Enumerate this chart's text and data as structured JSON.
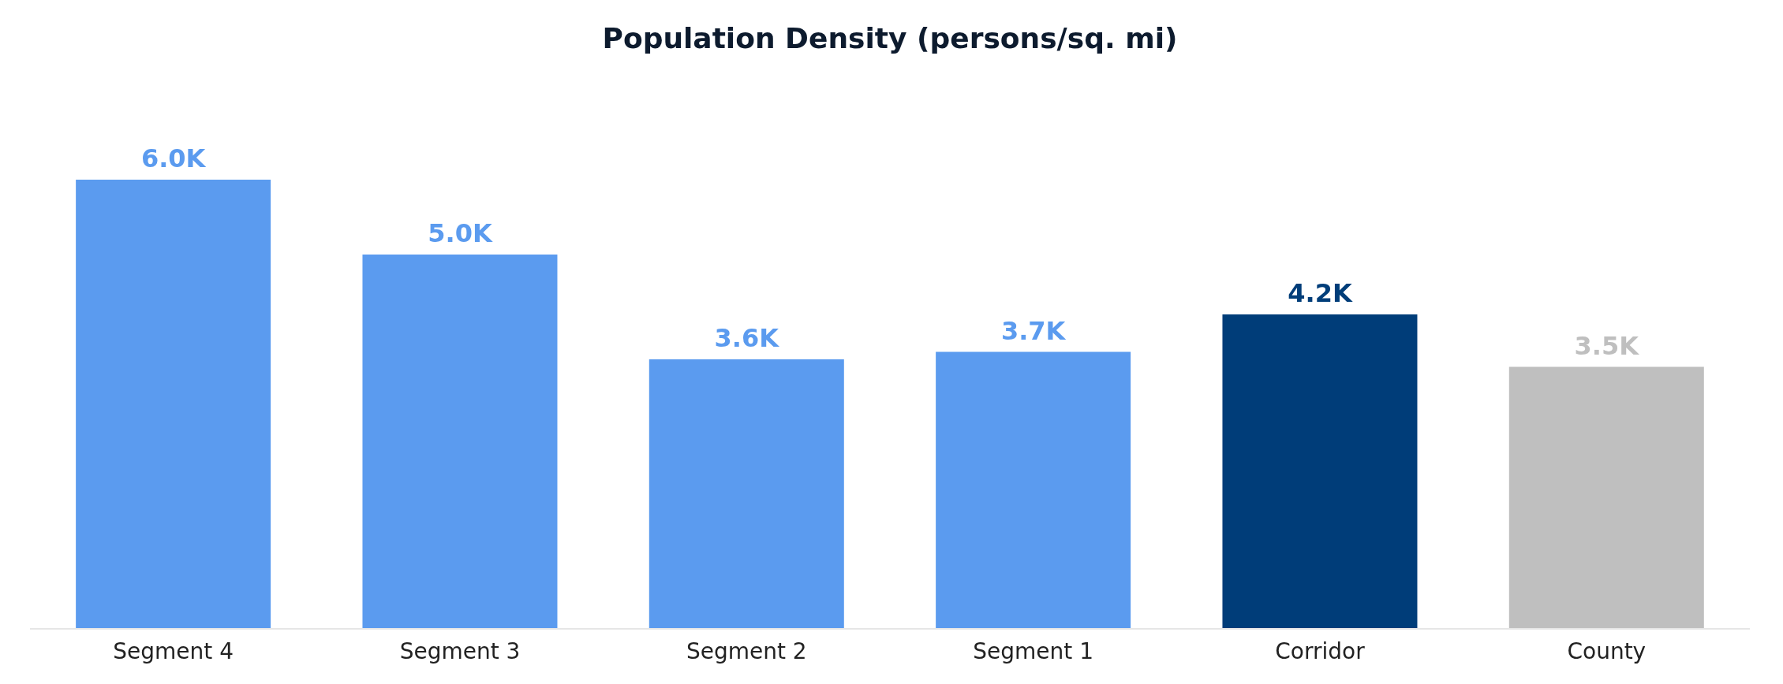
{
  "chart_data": {
    "type": "bar",
    "title": "Population Density (persons/sq. mi)",
    "categories": [
      "Segment 4",
      "Segment 3",
      "Segment 2",
      "Segment 1",
      "Corridor",
      "County"
    ],
    "values": [
      6000,
      5000,
      3600,
      3700,
      4200,
      3500
    ],
    "value_labels": [
      "6.0K",
      "5.0K",
      "3.6K",
      "3.7K",
      "4.2K",
      "3.5K"
    ],
    "colors": [
      "#5b9bef",
      "#5b9bef",
      "#5b9bef",
      "#5b9bef",
      "#003d79",
      "#bfbfbf"
    ],
    "grid": false,
    "legend": false
  }
}
